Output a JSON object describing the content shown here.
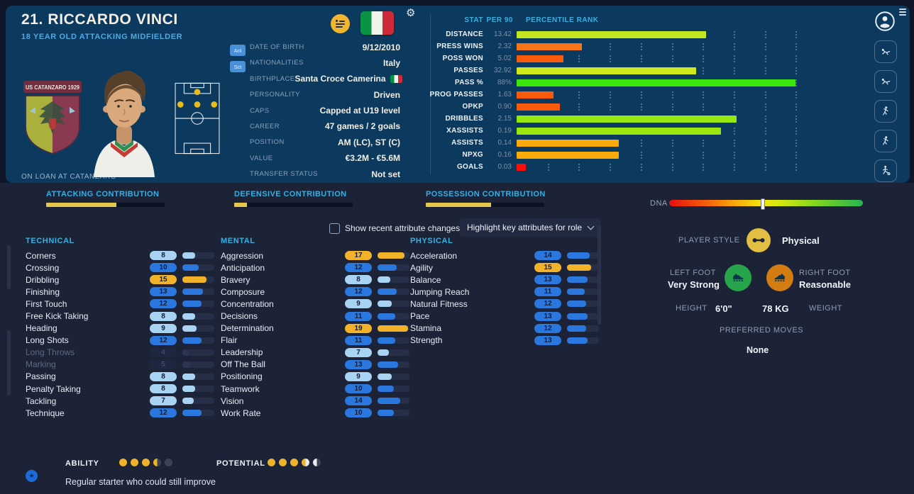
{
  "header": {
    "title": "21. RICCARDO VINCI",
    "subtitle": "18 YEAR OLD ATTACKING MIDFIELDER",
    "loan_note": "ON LOAN AT CATANZARO",
    "crest_title": "US CATANZARO 1929",
    "quick_buttons": {
      "analysis": "Anl",
      "scout": "Sct"
    },
    "info_rows": [
      {
        "label": "DATE OF BIRTH",
        "value": "9/12/2010"
      },
      {
        "label": "NATIONALITIES",
        "value": "Italy"
      },
      {
        "label": "BIRTHPLACE",
        "value": "Santa Croce Camerina",
        "flag": true
      },
      {
        "label": "PERSONALITY",
        "value": "Driven"
      },
      {
        "label": "CAPS",
        "value": "Capped at U19 level"
      },
      {
        "label": "CAREER",
        "value": "47 games /  2  goals"
      },
      {
        "label": "POSITION",
        "value": "AM (LC), ST (C)"
      },
      {
        "label": "VALUE",
        "value": "€3.2M - €5.6M"
      },
      {
        "label": "TRANSFER STATUS",
        "value": "Not set"
      }
    ]
  },
  "stats_panel": {
    "headers": {
      "stat": "STAT",
      "per90": "PER 90",
      "percentile": "PERCENTILE RANK"
    },
    "rows": [
      {
        "stat": "DISTANCE",
        "per90": "13.42",
        "percentile": 61,
        "color": "#c3e821"
      },
      {
        "stat": "PRESS WINS",
        "per90": "2.32",
        "percentile": 21,
        "color": "#f97415"
      },
      {
        "stat": "POSS WON",
        "per90": "5.02",
        "percentile": 15,
        "color": "#fa5a0c"
      },
      {
        "stat": "PASSES",
        "per90": "32.92",
        "percentile": 58,
        "color": "#cde81b"
      },
      {
        "stat": "PASS %",
        "per90": "88%",
        "percentile": 90,
        "color": "#3ae60b"
      },
      {
        "stat": "PROG PASSES",
        "per90": "1.63",
        "percentile": 12,
        "color": "#fa5a0c"
      },
      {
        "stat": "OPKP",
        "per90": "0.90",
        "percentile": 14,
        "color": "#fa5a0c"
      },
      {
        "stat": "DRIBBLES",
        "per90": "2.15",
        "percentile": 71,
        "color": "#97e80e"
      },
      {
        "stat": "XASSISTS",
        "per90": "0.19",
        "percentile": 66,
        "color": "#9ae70d"
      },
      {
        "stat": "ASSISTS",
        "per90": "0.14",
        "percentile": 33,
        "color": "#fbaa0a"
      },
      {
        "stat": "NPXG",
        "per90": "0.16",
        "percentile": 33,
        "color": "#fbaa0a"
      },
      {
        "stat": "GOALS",
        "per90": "0.03",
        "percentile": 3,
        "color": "#f80d07"
      }
    ]
  },
  "contributions": [
    {
      "label": "ATTACKING CONTRIBUTION",
      "pct": 59
    },
    {
      "label": "DEFENSIVE CONTRIBUTION",
      "pct": 11
    },
    {
      "label": "POSSESSION CONTRIBUTION",
      "pct": 55
    }
  ],
  "dna": {
    "label": "DNA",
    "marker_pct": 48
  },
  "controls": {
    "checkbox_label": "Show recent attribute changes",
    "checked": false,
    "dropdown_label": "Highlight key attributes for role"
  },
  "attributes": {
    "technical": {
      "title": "TECHNICAL",
      "rows": [
        {
          "name": "Corners",
          "value": 8
        },
        {
          "name": "Crossing",
          "value": 10
        },
        {
          "name": "Dribbling",
          "value": 15
        },
        {
          "name": "Finishing",
          "value": 13
        },
        {
          "name": "First Touch",
          "value": 12
        },
        {
          "name": "Free Kick Taking",
          "value": 8
        },
        {
          "name": "Heading",
          "value": 9
        },
        {
          "name": "Long Shots",
          "value": 12
        },
        {
          "name": "Long Throws",
          "value": 4,
          "faded": true
        },
        {
          "name": "Marking",
          "value": 5,
          "faded": true
        },
        {
          "name": "Passing",
          "value": 8
        },
        {
          "name": "Penalty Taking",
          "value": 8
        },
        {
          "name": "Tackling",
          "value": 7
        },
        {
          "name": "Technique",
          "value": 12
        }
      ]
    },
    "mental": {
      "title": "MENTAL",
      "rows": [
        {
          "name": "Aggression",
          "value": 17
        },
        {
          "name": "Anticipation",
          "value": 12
        },
        {
          "name": "Bravery",
          "value": 8
        },
        {
          "name": "Composure",
          "value": 12
        },
        {
          "name": "Concentration",
          "value": 9
        },
        {
          "name": "Decisions",
          "value": 11
        },
        {
          "name": "Determination",
          "value": 19
        },
        {
          "name": "Flair",
          "value": 11
        },
        {
          "name": "Leadership",
          "value": 7
        },
        {
          "name": "Off The Ball",
          "value": 13
        },
        {
          "name": "Positioning",
          "value": 9
        },
        {
          "name": "Teamwork",
          "value": 10
        },
        {
          "name": "Vision",
          "value": 14
        },
        {
          "name": "Work Rate",
          "value": 10
        }
      ]
    },
    "physical": {
      "title": "PHYSICAL",
      "rows": [
        {
          "name": "Acceleration",
          "value": 14
        },
        {
          "name": "Agility",
          "value": 15
        },
        {
          "name": "Balance",
          "value": 13
        },
        {
          "name": "Jumping Reach",
          "value": 11
        },
        {
          "name": "Natural Fitness",
          "value": 12
        },
        {
          "name": "Pace",
          "value": 13
        },
        {
          "name": "Stamina",
          "value": 12
        },
        {
          "name": "Strength",
          "value": 13
        }
      ]
    }
  },
  "profile": {
    "player_style_label": "PLAYER STYLE",
    "player_style_value": "Physical",
    "left_foot_label": "LEFT FOOT",
    "left_foot_value": "Very Strong",
    "right_foot_label": "RIGHT FOOT",
    "right_foot_value": "Reasonable",
    "height_label": "HEIGHT",
    "height_value": "6'0\"",
    "weight_value": "78 KG",
    "weight_label": "WEIGHT",
    "preferred_moves_label": "PREFERRED MOVES",
    "preferred_moves_value": "None"
  },
  "footer": {
    "ability_label": "ABILITY",
    "ability_dots": [
      "full",
      "full",
      "full",
      "half",
      "empty"
    ],
    "potential_label": "POTENTIAL",
    "potential_dots": [
      "full",
      "full",
      "full",
      "gold-white",
      "white-dark"
    ],
    "description": "Regular starter who could still improve",
    "favorite_icon": "star"
  },
  "colors": {
    "amber": "#f2b32b",
    "blue": "#2a77dd",
    "light_blue": "#a9d3f2",
    "cyan": "#35b1e4",
    "contrib_yellow": "#e5c84c"
  }
}
